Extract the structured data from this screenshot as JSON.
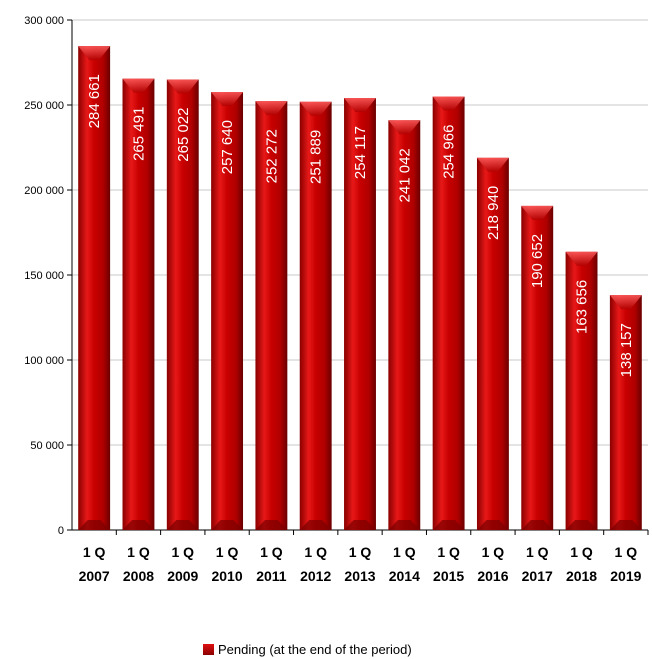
{
  "chart_data": {
    "type": "bar",
    "categories": [
      [
        "1 Q",
        "2007"
      ],
      [
        "1 Q",
        "2008"
      ],
      [
        "1 Q",
        "2009"
      ],
      [
        "1 Q",
        "2010"
      ],
      [
        "1 Q",
        "2011"
      ],
      [
        "1 Q",
        "2012"
      ],
      [
        "1 Q",
        "2013"
      ],
      [
        "1 Q",
        "2014"
      ],
      [
        "1 Q",
        "2015"
      ],
      [
        "1 Q",
        "2016"
      ],
      [
        "1 Q",
        "2017"
      ],
      [
        "1 Q",
        "2018"
      ],
      [
        "1 Q",
        "2019"
      ]
    ],
    "series": [
      {
        "name": "Pending (at the end of the period)",
        "values": [
          284661,
          265491,
          265022,
          257640,
          252272,
          251889,
          254117,
          241042,
          254966,
          218940,
          190652,
          163656,
          138157
        ],
        "labels": [
          "284 661",
          "265 491",
          "265 022",
          "257 640",
          "252 272",
          "251 889",
          "254 117",
          "241 042",
          "254 966",
          "218 940",
          "190 652",
          "163 656",
          "138 157"
        ]
      }
    ],
    "ylim": [
      0,
      300000
    ],
    "yticks": [
      0,
      50000,
      100000,
      150000,
      200000,
      250000,
      300000
    ],
    "ytick_labels": [
      "0",
      "50 000",
      "100 000",
      "150 000",
      "200 000",
      "250 000",
      "300 000"
    ],
    "grid": true,
    "legend_position": "bottom",
    "bar_color": "#c00000"
  },
  "legend": {
    "label": "Pending (at the end of the period)"
  }
}
